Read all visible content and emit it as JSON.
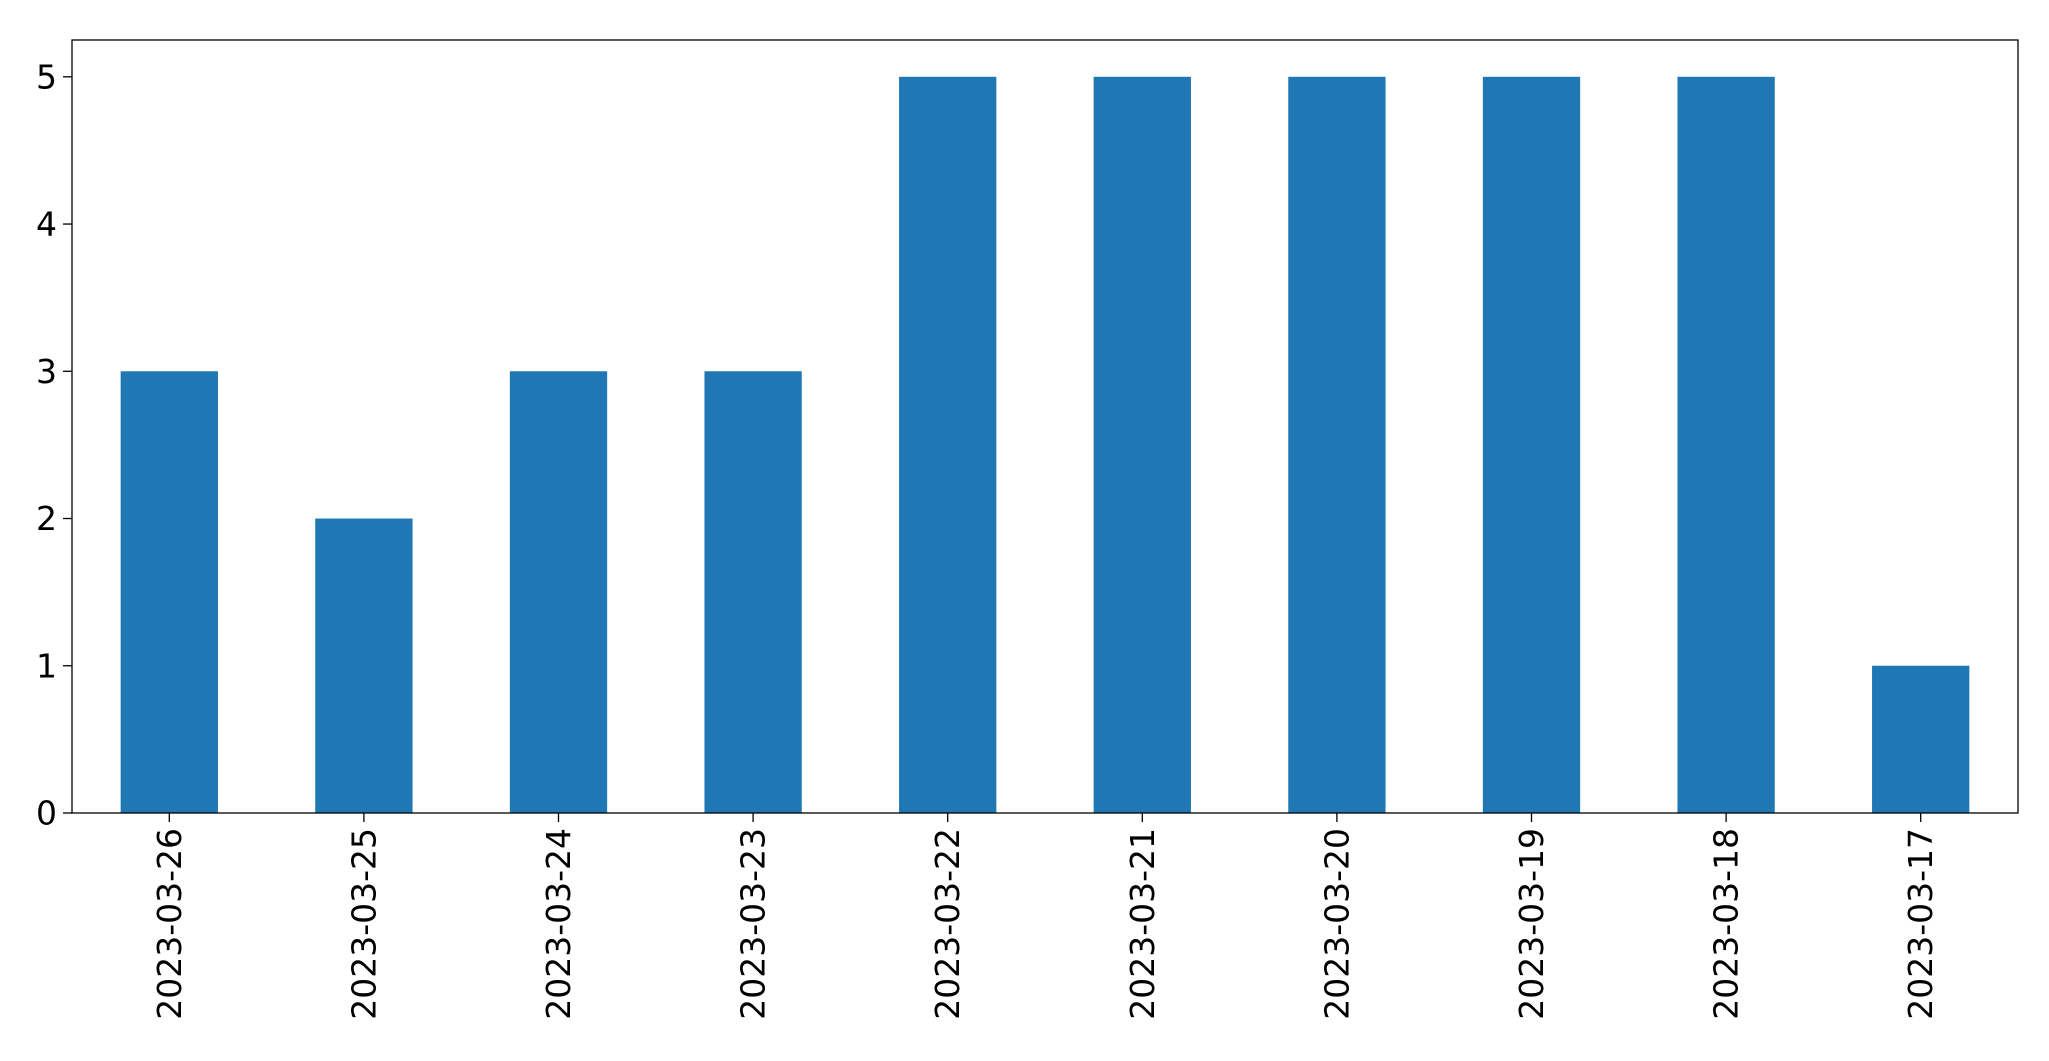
{
  "chart_data": {
    "type": "bar",
    "categories": [
      "2023-03-26",
      "2023-03-25",
      "2023-03-24",
      "2023-03-23",
      "2023-03-22",
      "2023-03-21",
      "2023-03-20",
      "2023-03-19",
      "2023-03-18",
      "2023-03-17"
    ],
    "values": [
      3,
      2,
      3,
      3,
      5,
      5,
      5,
      5,
      5,
      1
    ],
    "title": "",
    "xlabel": "",
    "ylabel": "",
    "ylim": [
      0,
      5.25
    ],
    "yticks": [
      0,
      1,
      2,
      3,
      4,
      5
    ],
    "grid": false,
    "legend": "none",
    "colors": {
      "bar": "#1f77b4",
      "axis": "#000000",
      "background": "#ffffff"
    }
  }
}
